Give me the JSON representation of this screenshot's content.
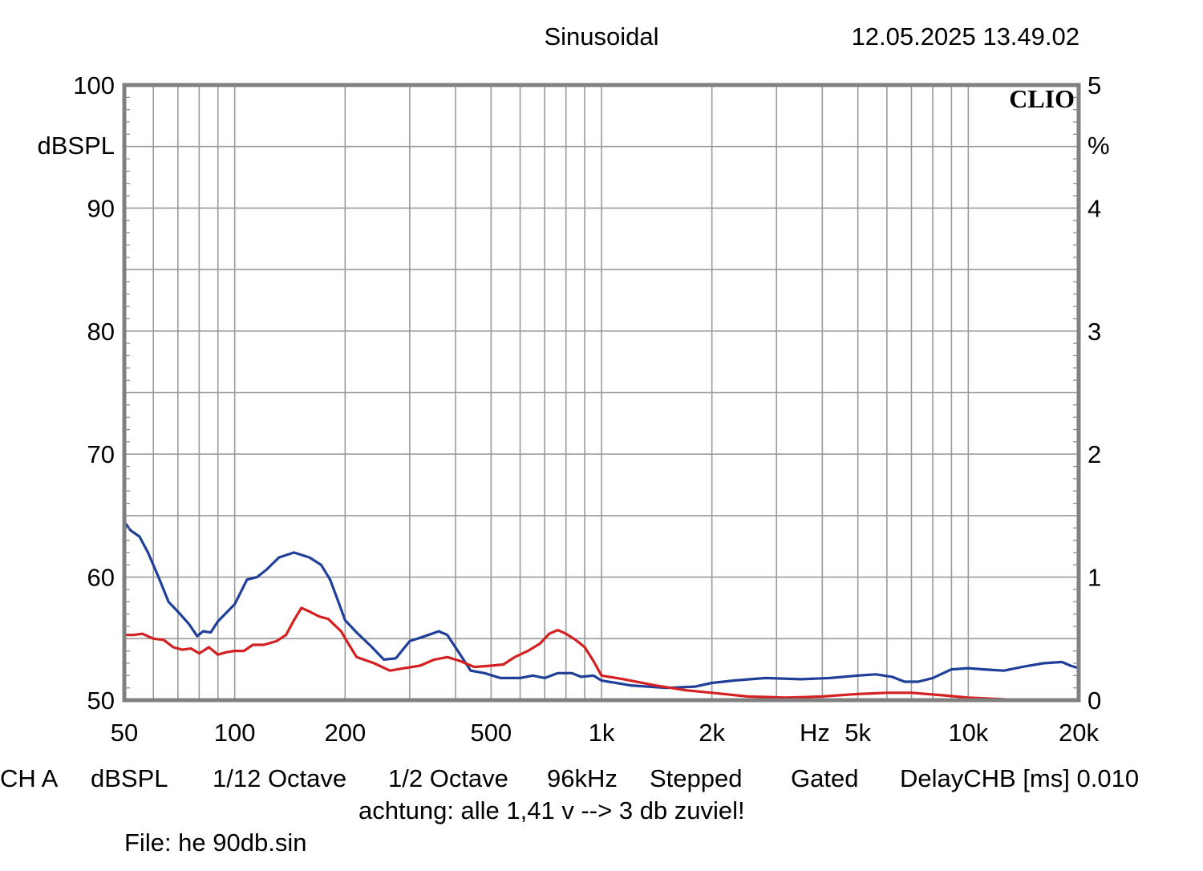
{
  "header": {
    "title": "Sinusoidal",
    "datetime": "12.05.2025 13.49.02"
  },
  "logo": "CLIO",
  "footer": {
    "line1": [
      "CH A",
      "dBSPL",
      "1/12 Octave",
      "1/2 Octave",
      "96kHz",
      "Stepped",
      "Gated",
      "DelayCHB [ms] 0.010"
    ],
    "note": "achtung: alle 1,41 v --> 3 db zuviel!",
    "file": "File: he 90db.sin"
  },
  "colors": {
    "blue_series": "#1f3f99",
    "red_series": "#d42020",
    "grid": "#9a9a9a",
    "frame": "#808080"
  },
  "chart_data": {
    "type": "line",
    "x_scale": "log",
    "xlim": [
      50,
      20000
    ],
    "ylim": [
      50,
      100
    ],
    "y2lim": [
      0,
      5
    ],
    "ylabel": "dBSPL",
    "y2label": "%",
    "xlabel": "Hz",
    "x_ticks": [
      {
        "v": 50,
        "label": "50"
      },
      {
        "v": 100,
        "label": "100"
      },
      {
        "v": 200,
        "label": "200"
      },
      {
        "v": 500,
        "label": "500"
      },
      {
        "v": 1000,
        "label": "1k"
      },
      {
        "v": 2000,
        "label": "2k"
      },
      {
        "v": 5000,
        "label": "5k"
      },
      {
        "v": 10000,
        "label": "10k"
      },
      {
        "v": 20000,
        "label": "20k"
      }
    ],
    "y_ticks": [
      {
        "v": 100,
        "label": "100"
      },
      {
        "v": 90,
        "label": "90"
      },
      {
        "v": 80,
        "label": "80"
      },
      {
        "v": 70,
        "label": "70"
      },
      {
        "v": 60,
        "label": "60"
      },
      {
        "v": 50,
        "label": "50"
      }
    ],
    "y2_ticks": [
      {
        "v": 5,
        "label": "5"
      },
      {
        "v": 4,
        "label": "4"
      },
      {
        "v": 3,
        "label": "3"
      },
      {
        "v": 2,
        "label": "2"
      },
      {
        "v": 1,
        "label": "1"
      },
      {
        "v": 0,
        "label": "0"
      }
    ],
    "grid": true,
    "series": [
      {
        "color": "#1f3f99",
        "points": [
          [
            50,
            64.5
          ],
          [
            52,
            63.8
          ],
          [
            55,
            63.3
          ],
          [
            58,
            62.0
          ],
          [
            62,
            60.0
          ],
          [
            66,
            58.0
          ],
          [
            70,
            57.2
          ],
          [
            75,
            56.2
          ],
          [
            79,
            55.2
          ],
          [
            82,
            55.6
          ],
          [
            86,
            55.5
          ],
          [
            90,
            56.4
          ],
          [
            100,
            57.8
          ],
          [
            108,
            59.8
          ],
          [
            115,
            60.0
          ],
          [
            122,
            60.6
          ],
          [
            132,
            61.6
          ],
          [
            145,
            62.0
          ],
          [
            160,
            61.6
          ],
          [
            172,
            61.0
          ],
          [
            182,
            59.8
          ],
          [
            190,
            58.3
          ],
          [
            200,
            56.5
          ],
          [
            215,
            55.5
          ],
          [
            235,
            54.4
          ],
          [
            255,
            53.3
          ],
          [
            275,
            53.4
          ],
          [
            300,
            54.8
          ],
          [
            330,
            55.2
          ],
          [
            360,
            55.6
          ],
          [
            380,
            55.3
          ],
          [
            410,
            53.8
          ],
          [
            440,
            52.4
          ],
          [
            480,
            52.2
          ],
          [
            530,
            51.8
          ],
          [
            600,
            51.8
          ],
          [
            650,
            52.0
          ],
          [
            700,
            51.8
          ],
          [
            760,
            52.2
          ],
          [
            830,
            52.2
          ],
          [
            880,
            51.9
          ],
          [
            950,
            52.0
          ],
          [
            1000,
            51.6
          ],
          [
            1200,
            51.2
          ],
          [
            1500,
            51.0
          ],
          [
            1800,
            51.1
          ],
          [
            2000,
            51.4
          ],
          [
            2300,
            51.6
          ],
          [
            2800,
            51.8
          ],
          [
            3500,
            51.7
          ],
          [
            4200,
            51.8
          ],
          [
            5000,
            52.0
          ],
          [
            5600,
            52.1
          ],
          [
            6200,
            51.9
          ],
          [
            6700,
            51.5
          ],
          [
            7300,
            51.5
          ],
          [
            8000,
            51.8
          ],
          [
            9000,
            52.5
          ],
          [
            10000,
            52.6
          ],
          [
            11000,
            52.5
          ],
          [
            12500,
            52.4
          ],
          [
            14000,
            52.7
          ],
          [
            16000,
            53.0
          ],
          [
            18000,
            53.1
          ],
          [
            19000,
            52.8
          ],
          [
            20000,
            52.6
          ]
        ]
      },
      {
        "color": "#d42020",
        "points": [
          [
            50,
            55.3
          ],
          [
            53,
            55.3
          ],
          [
            56,
            55.4
          ],
          [
            60,
            55.0
          ],
          [
            64,
            54.9
          ],
          [
            68,
            54.3
          ],
          [
            72,
            54.1
          ],
          [
            76,
            54.2
          ],
          [
            80,
            53.8
          ],
          [
            85,
            54.3
          ],
          [
            90,
            53.7
          ],
          [
            95,
            53.9
          ],
          [
            100,
            54.0
          ],
          [
            106,
            54.0
          ],
          [
            112,
            54.5
          ],
          [
            120,
            54.5
          ],
          [
            130,
            54.8
          ],
          [
            138,
            55.3
          ],
          [
            145,
            56.5
          ],
          [
            152,
            57.5
          ],
          [
            160,
            57.2
          ],
          [
            170,
            56.8
          ],
          [
            180,
            56.6
          ],
          [
            195,
            55.6
          ],
          [
            205,
            54.5
          ],
          [
            215,
            53.5
          ],
          [
            240,
            53.0
          ],
          [
            265,
            52.4
          ],
          [
            290,
            52.6
          ],
          [
            320,
            52.8
          ],
          [
            350,
            53.3
          ],
          [
            380,
            53.5
          ],
          [
            410,
            53.2
          ],
          [
            450,
            52.7
          ],
          [
            500,
            52.8
          ],
          [
            540,
            52.9
          ],
          [
            580,
            53.5
          ],
          [
            630,
            54.0
          ],
          [
            680,
            54.6
          ],
          [
            720,
            55.4
          ],
          [
            760,
            55.7
          ],
          [
            800,
            55.4
          ],
          [
            850,
            54.9
          ],
          [
            900,
            54.3
          ],
          [
            950,
            53.2
          ],
          [
            1000,
            52.0
          ],
          [
            1150,
            51.7
          ],
          [
            1400,
            51.2
          ],
          [
            1700,
            50.8
          ],
          [
            2000,
            50.6
          ],
          [
            2500,
            50.3
          ],
          [
            3200,
            50.2
          ],
          [
            4000,
            50.3
          ],
          [
            5000,
            50.5
          ],
          [
            6000,
            50.6
          ],
          [
            7000,
            50.6
          ],
          [
            8500,
            50.4
          ],
          [
            10000,
            50.2
          ],
          [
            12000,
            50.1
          ],
          [
            14000,
            50.0
          ]
        ]
      }
    ]
  }
}
